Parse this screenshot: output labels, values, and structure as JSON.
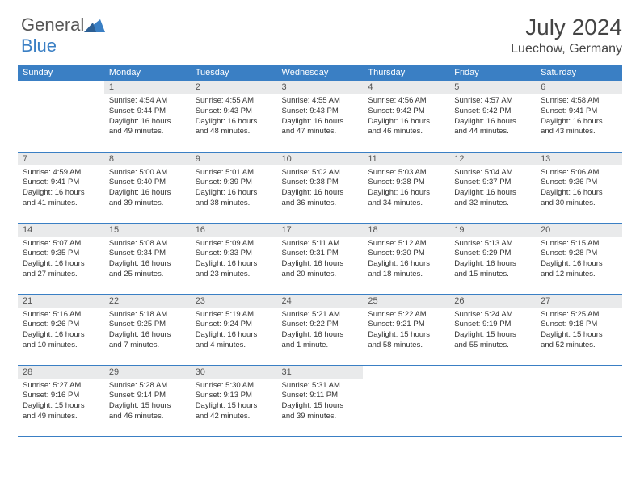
{
  "brand": {
    "part1": "General",
    "part2": "Blue"
  },
  "title": "July 2024",
  "location": "Luechow, Germany",
  "colors": {
    "header_bg": "#3a7fc4",
    "header_text": "#ffffff",
    "daynum_bg": "#e9eaeb",
    "text": "#333333",
    "rule": "#3a7fc4",
    "page_bg": "#ffffff"
  },
  "weekdays": [
    "Sunday",
    "Monday",
    "Tuesday",
    "Wednesday",
    "Thursday",
    "Friday",
    "Saturday"
  ],
  "weeks": [
    [
      null,
      {
        "n": "1",
        "sr": "Sunrise: 4:54 AM",
        "ss": "Sunset: 9:44 PM",
        "dl": "Daylight: 16 hours and 49 minutes."
      },
      {
        "n": "2",
        "sr": "Sunrise: 4:55 AM",
        "ss": "Sunset: 9:43 PM",
        "dl": "Daylight: 16 hours and 48 minutes."
      },
      {
        "n": "3",
        "sr": "Sunrise: 4:55 AM",
        "ss": "Sunset: 9:43 PM",
        "dl": "Daylight: 16 hours and 47 minutes."
      },
      {
        "n": "4",
        "sr": "Sunrise: 4:56 AM",
        "ss": "Sunset: 9:42 PM",
        "dl": "Daylight: 16 hours and 46 minutes."
      },
      {
        "n": "5",
        "sr": "Sunrise: 4:57 AM",
        "ss": "Sunset: 9:42 PM",
        "dl": "Daylight: 16 hours and 44 minutes."
      },
      {
        "n": "6",
        "sr": "Sunrise: 4:58 AM",
        "ss": "Sunset: 9:41 PM",
        "dl": "Daylight: 16 hours and 43 minutes."
      }
    ],
    [
      {
        "n": "7",
        "sr": "Sunrise: 4:59 AM",
        "ss": "Sunset: 9:41 PM",
        "dl": "Daylight: 16 hours and 41 minutes."
      },
      {
        "n": "8",
        "sr": "Sunrise: 5:00 AM",
        "ss": "Sunset: 9:40 PM",
        "dl": "Daylight: 16 hours and 39 minutes."
      },
      {
        "n": "9",
        "sr": "Sunrise: 5:01 AM",
        "ss": "Sunset: 9:39 PM",
        "dl": "Daylight: 16 hours and 38 minutes."
      },
      {
        "n": "10",
        "sr": "Sunrise: 5:02 AM",
        "ss": "Sunset: 9:38 PM",
        "dl": "Daylight: 16 hours and 36 minutes."
      },
      {
        "n": "11",
        "sr": "Sunrise: 5:03 AM",
        "ss": "Sunset: 9:38 PM",
        "dl": "Daylight: 16 hours and 34 minutes."
      },
      {
        "n": "12",
        "sr": "Sunrise: 5:04 AM",
        "ss": "Sunset: 9:37 PM",
        "dl": "Daylight: 16 hours and 32 minutes."
      },
      {
        "n": "13",
        "sr": "Sunrise: 5:06 AM",
        "ss": "Sunset: 9:36 PM",
        "dl": "Daylight: 16 hours and 30 minutes."
      }
    ],
    [
      {
        "n": "14",
        "sr": "Sunrise: 5:07 AM",
        "ss": "Sunset: 9:35 PM",
        "dl": "Daylight: 16 hours and 27 minutes."
      },
      {
        "n": "15",
        "sr": "Sunrise: 5:08 AM",
        "ss": "Sunset: 9:34 PM",
        "dl": "Daylight: 16 hours and 25 minutes."
      },
      {
        "n": "16",
        "sr": "Sunrise: 5:09 AM",
        "ss": "Sunset: 9:33 PM",
        "dl": "Daylight: 16 hours and 23 minutes."
      },
      {
        "n": "17",
        "sr": "Sunrise: 5:11 AM",
        "ss": "Sunset: 9:31 PM",
        "dl": "Daylight: 16 hours and 20 minutes."
      },
      {
        "n": "18",
        "sr": "Sunrise: 5:12 AM",
        "ss": "Sunset: 9:30 PM",
        "dl": "Daylight: 16 hours and 18 minutes."
      },
      {
        "n": "19",
        "sr": "Sunrise: 5:13 AM",
        "ss": "Sunset: 9:29 PM",
        "dl": "Daylight: 16 hours and 15 minutes."
      },
      {
        "n": "20",
        "sr": "Sunrise: 5:15 AM",
        "ss": "Sunset: 9:28 PM",
        "dl": "Daylight: 16 hours and 12 minutes."
      }
    ],
    [
      {
        "n": "21",
        "sr": "Sunrise: 5:16 AM",
        "ss": "Sunset: 9:26 PM",
        "dl": "Daylight: 16 hours and 10 minutes."
      },
      {
        "n": "22",
        "sr": "Sunrise: 5:18 AM",
        "ss": "Sunset: 9:25 PM",
        "dl": "Daylight: 16 hours and 7 minutes."
      },
      {
        "n": "23",
        "sr": "Sunrise: 5:19 AM",
        "ss": "Sunset: 9:24 PM",
        "dl": "Daylight: 16 hours and 4 minutes."
      },
      {
        "n": "24",
        "sr": "Sunrise: 5:21 AM",
        "ss": "Sunset: 9:22 PM",
        "dl": "Daylight: 16 hours and 1 minute."
      },
      {
        "n": "25",
        "sr": "Sunrise: 5:22 AM",
        "ss": "Sunset: 9:21 PM",
        "dl": "Daylight: 15 hours and 58 minutes."
      },
      {
        "n": "26",
        "sr": "Sunrise: 5:24 AM",
        "ss": "Sunset: 9:19 PM",
        "dl": "Daylight: 15 hours and 55 minutes."
      },
      {
        "n": "27",
        "sr": "Sunrise: 5:25 AM",
        "ss": "Sunset: 9:18 PM",
        "dl": "Daylight: 15 hours and 52 minutes."
      }
    ],
    [
      {
        "n": "28",
        "sr": "Sunrise: 5:27 AM",
        "ss": "Sunset: 9:16 PM",
        "dl": "Daylight: 15 hours and 49 minutes."
      },
      {
        "n": "29",
        "sr": "Sunrise: 5:28 AM",
        "ss": "Sunset: 9:14 PM",
        "dl": "Daylight: 15 hours and 46 minutes."
      },
      {
        "n": "30",
        "sr": "Sunrise: 5:30 AM",
        "ss": "Sunset: 9:13 PM",
        "dl": "Daylight: 15 hours and 42 minutes."
      },
      {
        "n": "31",
        "sr": "Sunrise: 5:31 AM",
        "ss": "Sunset: 9:11 PM",
        "dl": "Daylight: 15 hours and 39 minutes."
      },
      null,
      null,
      null
    ]
  ]
}
